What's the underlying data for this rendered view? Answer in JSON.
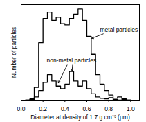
{
  "chart_data": {
    "type": "step_histogram",
    "x_label": "Diameter at density of 1.7 g cm⁻³ (μm)",
    "y_label": "Number of particles",
    "bins": [
      0.04,
      0.08,
      0.12,
      0.16,
      0.2,
      0.24,
      0.28,
      0.32,
      0.36,
      0.4,
      0.44,
      0.48,
      0.52,
      0.56,
      0.6,
      0.64,
      0.68,
      0.72,
      0.76,
      0.8,
      0.84,
      0.88,
      0.92,
      0.96,
      1.0
    ],
    "series": [
      {
        "name": "metal particles",
        "color": "#000000",
        "values": [
          0,
          2,
          20,
          90,
          128,
          138,
          125,
          130,
          120,
          118,
          128,
          135,
          143,
          125,
          100,
          72,
          40,
          25,
          15,
          8,
          3,
          5,
          2,
          0
        ]
      },
      {
        "name": "non-metal particles",
        "color": "#000000",
        "values": [
          0,
          1,
          5,
          15,
          28,
          40,
          30,
          22,
          18,
          25,
          45,
          30,
          22,
          30,
          18,
          10,
          5,
          3,
          2,
          4,
          1,
          0,
          1,
          0
        ]
      }
    ],
    "annotations": [
      {
        "series": "metal particles",
        "x": 0.72,
        "y": 110,
        "arrows": [
          [
            0.75,
            104,
            0.645,
            97
          ]
        ]
      },
      {
        "series": "non-metal particles",
        "x": 0.46,
        "y": 62,
        "arrows": [
          [
            0.42,
            55,
            0.34,
            27
          ],
          [
            0.47,
            55,
            0.465,
            46
          ]
        ]
      }
    ],
    "xlim": [
      0,
      1.08
    ],
    "xticks": [
      {
        "value": 0,
        "label": "0.0"
      },
      0.2,
      0.4,
      0.6,
      0.8,
      {
        "value": 1,
        "label": "1.0"
      }
    ],
    "ylim": [
      0,
      150
    ],
    "tick_labels": "x",
    "grid": false
  }
}
